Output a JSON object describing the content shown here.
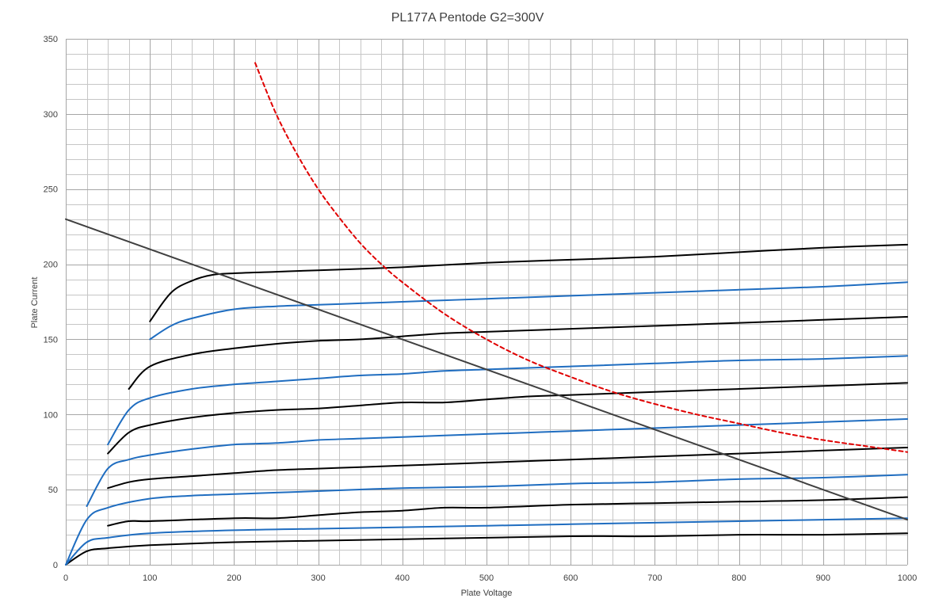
{
  "chart_data": {
    "type": "line",
    "title": "PL177A Pentode G2=300V",
    "xlabel": "Plate Voltage",
    "ylabel": "Plate Current",
    "xlim": [
      0,
      1000
    ],
    "ylim": [
      0,
      350
    ],
    "x_ticks": [
      0,
      100,
      200,
      300,
      400,
      500,
      600,
      700,
      800,
      900,
      1000
    ],
    "y_ticks": [
      0,
      50,
      100,
      150,
      200,
      250,
      300,
      350
    ],
    "x_minor_step": 25,
    "y_minor_step": 10,
    "grid": true,
    "legend": "none",
    "colors": {
      "black": "#000000",
      "blue": "#1f6dc0",
      "red": "#e00000",
      "load": "#404040"
    },
    "series": [
      {
        "color": "black",
        "style": "solid",
        "points": [
          [
            0,
            0
          ],
          [
            25,
            9
          ],
          [
            50,
            11
          ],
          [
            100,
            13
          ],
          [
            200,
            15
          ],
          [
            300,
            16
          ],
          [
            400,
            17
          ],
          [
            500,
            18
          ],
          [
            600,
            19
          ],
          [
            700,
            19
          ],
          [
            800,
            20
          ],
          [
            900,
            20
          ],
          [
            1000,
            21
          ]
        ]
      },
      {
        "color": "blue",
        "style": "solid",
        "points": [
          [
            0,
            0
          ],
          [
            25,
            15
          ],
          [
            50,
            18
          ],
          [
            100,
            21
          ],
          [
            200,
            23
          ],
          [
            300,
            24
          ],
          [
            400,
            25
          ],
          [
            500,
            26
          ],
          [
            600,
            27
          ],
          [
            700,
            28
          ],
          [
            800,
            29
          ],
          [
            900,
            30
          ],
          [
            1000,
            31
          ]
        ]
      },
      {
        "color": "black",
        "style": "solid",
        "points": [
          [
            50,
            26
          ],
          [
            75,
            29
          ],
          [
            100,
            29
          ],
          [
            200,
            31
          ],
          [
            250,
            31
          ],
          [
            300,
            33
          ],
          [
            350,
            35
          ],
          [
            400,
            36
          ],
          [
            450,
            38
          ],
          [
            500,
            38
          ],
          [
            600,
            40
          ],
          [
            700,
            41
          ],
          [
            800,
            42
          ],
          [
            900,
            43
          ],
          [
            1000,
            45
          ]
        ]
      },
      {
        "color": "blue",
        "style": "solid",
        "points": [
          [
            0,
            0
          ],
          [
            25,
            30
          ],
          [
            50,
            38
          ],
          [
            100,
            44
          ],
          [
            150,
            46
          ],
          [
            200,
            47
          ],
          [
            250,
            48
          ],
          [
            300,
            49
          ],
          [
            400,
            51
          ],
          [
            500,
            52
          ],
          [
            600,
            54
          ],
          [
            700,
            55
          ],
          [
            800,
            57
          ],
          [
            900,
            58
          ],
          [
            1000,
            60
          ]
        ]
      },
      {
        "color": "black",
        "style": "solid",
        "points": [
          [
            50,
            51
          ],
          [
            75,
            55
          ],
          [
            100,
            57
          ],
          [
            150,
            59
          ],
          [
            200,
            61
          ],
          [
            250,
            63
          ],
          [
            300,
            64
          ],
          [
            350,
            65
          ],
          [
            400,
            66
          ],
          [
            450,
            67
          ],
          [
            500,
            68
          ],
          [
            600,
            70
          ],
          [
            700,
            72
          ],
          [
            800,
            74
          ],
          [
            900,
            76
          ],
          [
            1000,
            78
          ]
        ]
      },
      {
        "color": "blue",
        "style": "solid",
        "points": [
          [
            25,
            39
          ],
          [
            50,
            64
          ],
          [
            75,
            70
          ],
          [
            100,
            73
          ],
          [
            150,
            77
          ],
          [
            200,
            80
          ],
          [
            250,
            81
          ],
          [
            300,
            83
          ],
          [
            350,
            84
          ],
          [
            400,
            85
          ],
          [
            450,
            86
          ],
          [
            500,
            87
          ],
          [
            550,
            88
          ],
          [
            600,
            89
          ],
          [
            700,
            91
          ],
          [
            800,
            93
          ],
          [
            900,
            95
          ],
          [
            1000,
            97
          ]
        ]
      },
      {
        "color": "black",
        "style": "solid",
        "points": [
          [
            50,
            74
          ],
          [
            75,
            88
          ],
          [
            100,
            93
          ],
          [
            150,
            98
          ],
          [
            200,
            101
          ],
          [
            250,
            103
          ],
          [
            300,
            104
          ],
          [
            350,
            106
          ],
          [
            400,
            108
          ],
          [
            450,
            108
          ],
          [
            500,
            110
          ],
          [
            550,
            112
          ],
          [
            600,
            113
          ],
          [
            700,
            115
          ],
          [
            800,
            117
          ],
          [
            900,
            119
          ],
          [
            1000,
            121
          ]
        ]
      },
      {
        "color": "blue",
        "style": "solid",
        "points": [
          [
            50,
            80
          ],
          [
            75,
            103
          ],
          [
            100,
            111
          ],
          [
            150,
            117
          ],
          [
            200,
            120
          ],
          [
            250,
            122
          ],
          [
            300,
            124
          ],
          [
            350,
            126
          ],
          [
            400,
            127
          ],
          [
            450,
            129
          ],
          [
            500,
            130
          ],
          [
            600,
            132
          ],
          [
            700,
            134
          ],
          [
            800,
            136
          ],
          [
            900,
            137
          ],
          [
            1000,
            139
          ]
        ]
      },
      {
        "color": "black",
        "style": "solid",
        "points": [
          [
            75,
            117
          ],
          [
            100,
            132
          ],
          [
            150,
            140
          ],
          [
            200,
            144
          ],
          [
            250,
            147
          ],
          [
            300,
            149
          ],
          [
            350,
            150
          ],
          [
            400,
            152
          ],
          [
            450,
            154
          ],
          [
            500,
            155
          ],
          [
            600,
            157
          ],
          [
            700,
            159
          ],
          [
            800,
            161
          ],
          [
            900,
            163
          ],
          [
            1000,
            165
          ]
        ]
      },
      {
        "color": "blue",
        "style": "solid",
        "points": [
          [
            100,
            150
          ],
          [
            125,
            159
          ],
          [
            150,
            164
          ],
          [
            200,
            170
          ],
          [
            250,
            172
          ],
          [
            300,
            173
          ],
          [
            350,
            174
          ],
          [
            400,
            175
          ],
          [
            450,
            176
          ],
          [
            500,
            177
          ],
          [
            600,
            179
          ],
          [
            700,
            181
          ],
          [
            800,
            183
          ],
          [
            900,
            185
          ],
          [
            1000,
            188
          ]
        ]
      },
      {
        "color": "black",
        "style": "solid",
        "points": [
          [
            100,
            162
          ],
          [
            125,
            181
          ],
          [
            150,
            189
          ],
          [
            175,
            193
          ],
          [
            200,
            194
          ],
          [
            250,
            195
          ],
          [
            300,
            196
          ],
          [
            400,
            198
          ],
          [
            500,
            201
          ],
          [
            600,
            203
          ],
          [
            700,
            205
          ],
          [
            800,
            208
          ],
          [
            900,
            211
          ],
          [
            1000,
            213
          ]
        ]
      },
      {
        "color": "load",
        "style": "solid",
        "points": [
          [
            0,
            230
          ],
          [
            1000,
            30
          ]
        ]
      },
      {
        "color": "red",
        "style": "dashed",
        "points": [
          [
            225,
            334
          ],
          [
            250,
            300
          ],
          [
            275,
            273
          ],
          [
            300,
            250
          ],
          [
            325,
            231
          ],
          [
            350,
            214
          ],
          [
            375,
            200
          ],
          [
            400,
            188
          ],
          [
            450,
            167
          ],
          [
            500,
            150
          ],
          [
            550,
            136
          ],
          [
            600,
            125
          ],
          [
            650,
            115
          ],
          [
            700,
            107
          ],
          [
            750,
            100
          ],
          [
            800,
            94
          ],
          [
            850,
            88
          ],
          [
            900,
            83
          ],
          [
            950,
            79
          ],
          [
            1000,
            75
          ]
        ]
      }
    ]
  }
}
